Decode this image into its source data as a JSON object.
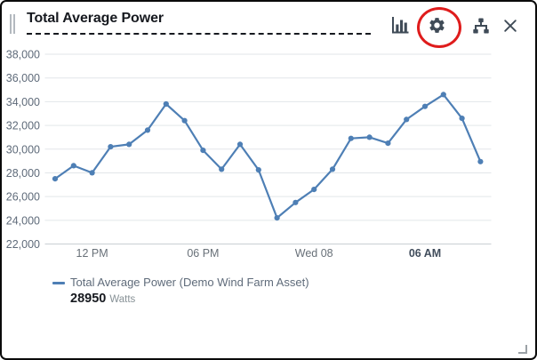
{
  "header": {
    "title": "Total Average Power",
    "icons": [
      "bar-chart",
      "settings-gear",
      "asset-hierarchy",
      "close"
    ],
    "annotation": {
      "type": "red-circle",
      "target": "settings-gear",
      "color": "#df1c1c"
    }
  },
  "chart_data": {
    "type": "line",
    "title": "Total Average Power",
    "grid": true,
    "y_axis": {
      "min": 22000,
      "max": 38000,
      "tick_step": 2000,
      "tick_labels": [
        "38,000",
        "36,000",
        "34,000",
        "32,000",
        "30,000",
        "28,000",
        "26,000",
        "24,000",
        "22,000"
      ]
    },
    "x_axis": {
      "ticks": [
        {
          "label": "12 PM",
          "point_index": 2,
          "bold": false
        },
        {
          "label": "06 PM",
          "point_index": 8,
          "bold": false
        },
        {
          "label": "Wed 08",
          "point_index": 14,
          "bold": false
        },
        {
          "label": "06 AM",
          "point_index": 20,
          "bold": true
        }
      ]
    },
    "series": [
      {
        "name": "Total Average Power (Demo Wind Farm Asset)",
        "unit": "Watts",
        "color": "#4e7fb5",
        "values": [
          27500,
          28600,
          28000,
          30200,
          30400,
          31600,
          33800,
          32400,
          29900,
          28300,
          30400,
          28250,
          24200,
          25500,
          26600,
          28300,
          30900,
          31000,
          30500,
          32500,
          33600,
          34600,
          32600,
          28950
        ]
      }
    ],
    "latest_value": 28950,
    "legend_position": "bottom-left"
  },
  "legend": {
    "series_label": "Total Average Power (Demo Wind Farm Asset)",
    "value": "28950",
    "unit": "Watts"
  }
}
